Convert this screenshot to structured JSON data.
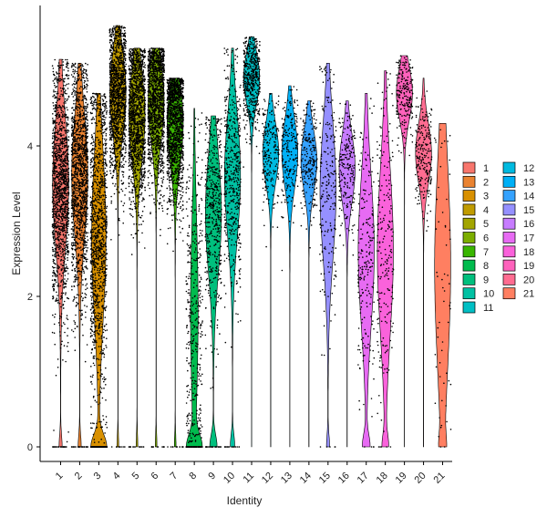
{
  "chart_data": {
    "type": "violin",
    "xlabel": "Identity",
    "ylabel": "Expression Level",
    "ylim": [
      0,
      5.65
    ],
    "y_ticks": [
      0,
      2,
      4
    ],
    "y_tick_labels": [
      "0",
      "2",
      "4"
    ],
    "grid": false,
    "legend_position": "right",
    "categories": [
      "1",
      "2",
      "3",
      "4",
      "5",
      "6",
      "7",
      "8",
      "9",
      "10",
      "11",
      "12",
      "13",
      "14",
      "15",
      "16",
      "17",
      "18",
      "19",
      "20",
      "21"
    ],
    "colors": [
      "#F8766D",
      "#EA8331",
      "#D89000",
      "#C09B00",
      "#A3A500",
      "#7CAE00",
      "#39B600",
      "#00BB4E",
      "#00BF7D",
      "#00C1A3",
      "#00BFC4",
      "#00BAE0",
      "#00B0F6",
      "#35A2FF",
      "#9590FF",
      "#C77CFF",
      "#E76BF3",
      "#FA62DB",
      "#FF62BC",
      "#FF6C91",
      "#FF7F61"
    ],
    "groups": [
      {
        "name": "1",
        "median": 3.5,
        "max": 5.15,
        "spread": 0.85,
        "zero_fraction": 0.02,
        "density": "high"
      },
      {
        "name": "2",
        "median": 3.6,
        "max": 5.1,
        "spread": 0.8,
        "zero_fraction": 0.02,
        "density": "high"
      },
      {
        "name": "3",
        "median": 2.8,
        "max": 4.7,
        "spread": 1.1,
        "zero_fraction": 0.12,
        "density": "high"
      },
      {
        "name": "4",
        "median": 4.7,
        "max": 5.6,
        "spread": 0.55,
        "zero_fraction": 0.01,
        "density": "high"
      },
      {
        "name": "5",
        "median": 4.4,
        "max": 5.3,
        "spread": 0.6,
        "zero_fraction": 0.01,
        "density": "high"
      },
      {
        "name": "6",
        "median": 4.6,
        "max": 5.3,
        "spread": 0.55,
        "zero_fraction": 0.01,
        "density": "high"
      },
      {
        "name": "7",
        "median": 4.3,
        "max": 4.9,
        "spread": 0.55,
        "zero_fraction": 0.01,
        "density": "high"
      },
      {
        "name": "8",
        "median": 1.8,
        "max": 4.5,
        "spread": 1.2,
        "zero_fraction": 0.2,
        "density": "medium"
      },
      {
        "name": "9",
        "median": 3.1,
        "max": 4.4,
        "spread": 0.8,
        "zero_fraction": 0.05,
        "density": "medium"
      },
      {
        "name": "10",
        "median": 3.6,
        "max": 5.3,
        "spread": 0.8,
        "zero_fraction": 0.03,
        "density": "medium"
      },
      {
        "name": "11",
        "median": 4.9,
        "max": 5.45,
        "spread": 0.35,
        "zero_fraction": 0.0,
        "density": "medium"
      },
      {
        "name": "12",
        "median": 3.9,
        "max": 4.7,
        "spread": 0.4,
        "zero_fraction": 0.0,
        "density": "low"
      },
      {
        "name": "13",
        "median": 3.9,
        "max": 4.8,
        "spread": 0.45,
        "zero_fraction": 0.0,
        "density": "low"
      },
      {
        "name": "14",
        "median": 3.8,
        "max": 4.6,
        "spread": 0.4,
        "zero_fraction": 0.0,
        "density": "low"
      },
      {
        "name": "15",
        "median": 3.4,
        "max": 5.1,
        "spread": 0.9,
        "zero_fraction": 0.02,
        "density": "low"
      },
      {
        "name": "16",
        "median": 3.7,
        "max": 4.6,
        "spread": 0.45,
        "zero_fraction": 0.0,
        "density": "low"
      },
      {
        "name": "17",
        "median": 2.6,
        "max": 4.7,
        "spread": 1.0,
        "zero_fraction": 0.05,
        "density": "low"
      },
      {
        "name": "18",
        "median": 2.6,
        "max": 5.0,
        "spread": 1.1,
        "zero_fraction": 0.04,
        "density": "low"
      },
      {
        "name": "19",
        "median": 4.7,
        "max": 5.2,
        "spread": 0.35,
        "zero_fraction": 0.0,
        "density": "low"
      },
      {
        "name": "20",
        "median": 3.9,
        "max": 4.9,
        "spread": 0.4,
        "zero_fraction": 0.0,
        "density": "low"
      },
      {
        "name": "21",
        "median": 2.4,
        "max": 4.3,
        "spread": 1.4,
        "zero_fraction": 0.03,
        "density": "sparse"
      }
    ]
  }
}
